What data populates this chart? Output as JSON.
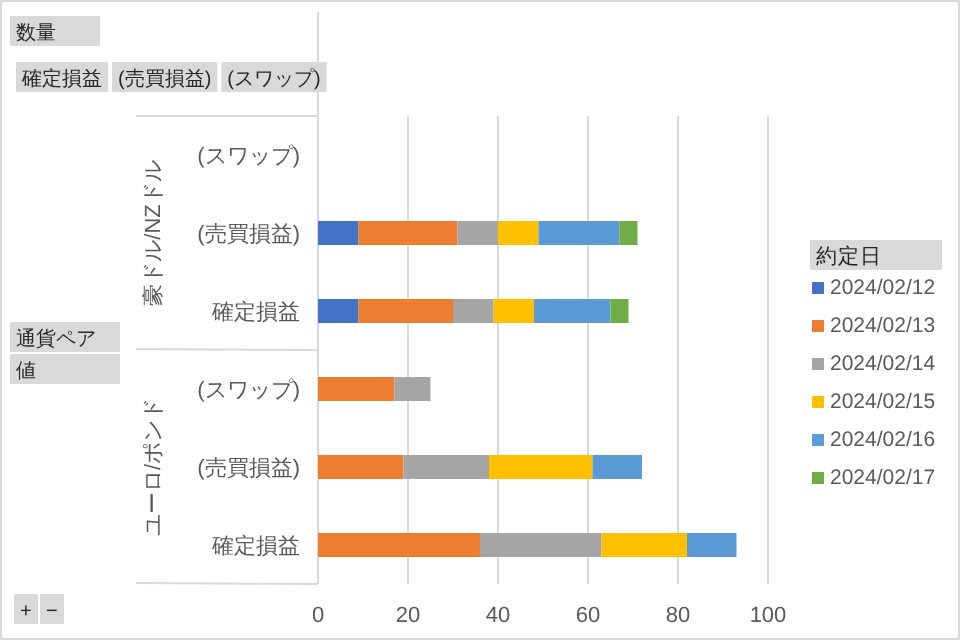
{
  "chart_data": {
    "type": "bar",
    "orientation": "horizontal",
    "stacked": true,
    "categories": [
      "(スワップ)",
      "(売買損益)",
      "確定損益",
      "(スワップ)",
      "(売買損益)",
      "確定損益"
    ],
    "series": [
      {
        "name": "2024/02/12",
        "color": "#4472c4",
        "values": [
          null,
          9,
          9,
          null,
          null,
          null
        ]
      },
      {
        "name": "2024/02/13",
        "color": "#ed7d31",
        "values": [
          null,
          22,
          21,
          17,
          19,
          36
        ]
      },
      {
        "name": "2024/02/14",
        "color": "#a5a5a5",
        "values": [
          null,
          9,
          9,
          8,
          19,
          27
        ]
      },
      {
        "name": "2024/02/15",
        "color": "#ffc000",
        "values": [
          null,
          9,
          9,
          null,
          23,
          19
        ]
      },
      {
        "name": "2024/02/16",
        "color": "#5b9bd5",
        "values": [
          null,
          18,
          17,
          null,
          11,
          11
        ]
      },
      {
        "name": "2024/02/17",
        "color": "#70ad47",
        "values": [
          null,
          4,
          4,
          null,
          null,
          null
        ]
      }
    ],
    "xlim": [
      0,
      100
    ],
    "xticks": [
      0,
      20,
      40,
      60,
      80,
      100
    ],
    "grid": "x",
    "legend": "right",
    "legend_title": "約定日",
    "annotations": [
      "数量",
      "確定損益",
      "(売買損益)",
      "(スワップ)",
      "通貨ペア",
      "値",
      "+",
      "−",
      "豪ドル/NZドル",
      "ユーロ/ポンド"
    ]
  }
}
